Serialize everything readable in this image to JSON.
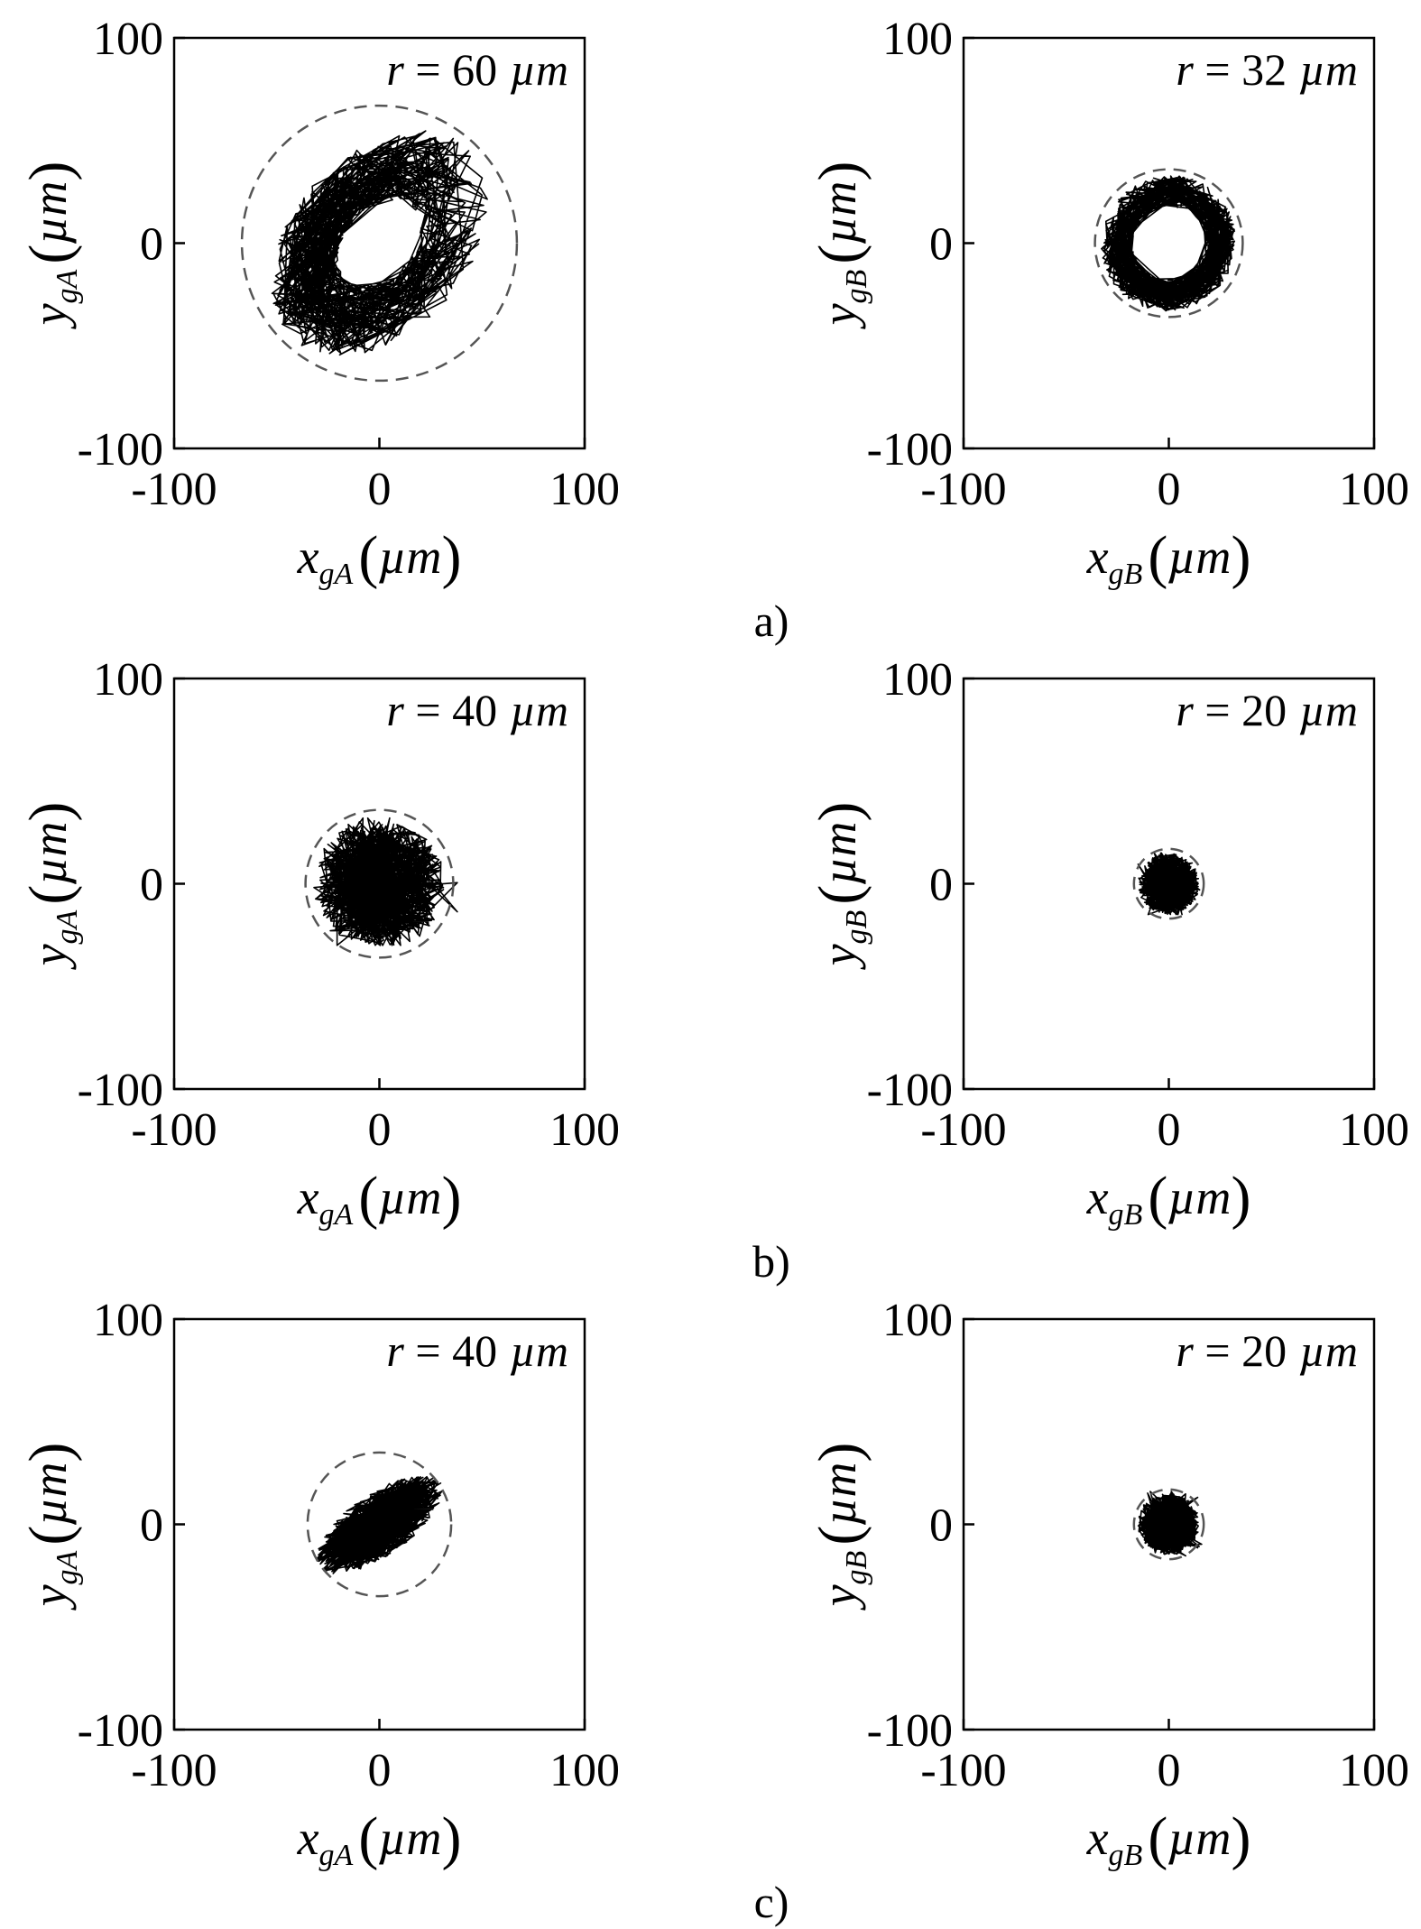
{
  "chart_data": [
    {
      "type": "line",
      "group": "a)",
      "panel": "left",
      "xlabel": {
        "var": "x",
        "sub": "gA",
        "unit": "µm"
      },
      "ylabel": {
        "var": "y",
        "sub": "gA",
        "unit": "µm"
      },
      "xlim": [
        -100,
        100
      ],
      "ylim": [
        -100,
        100
      ],
      "xticks": [
        "-100",
        "0",
        "100"
      ],
      "yticks": [
        "100",
        "0",
        "-100"
      ],
      "annotation": {
        "var": "r",
        "eq": " = ",
        "value": "60",
        "unit": "µm"
      },
      "boundary_circle": {
        "cx": 0,
        "cy": 0,
        "r": 67
      },
      "orbit": {
        "shape": "ring",
        "center": [
          0,
          0
        ],
        "r_inner": 14,
        "r_outer": 52,
        "skew": 0.55,
        "extent_x": [
          -58,
          58
        ],
        "extent_y": [
          -62,
          62
        ]
      }
    },
    {
      "type": "line",
      "group": "a)",
      "panel": "right",
      "xlabel": {
        "var": "x",
        "sub": "gB",
        "unit": "µm"
      },
      "ylabel": {
        "var": "y",
        "sub": "gB",
        "unit": "µm"
      },
      "xlim": [
        -100,
        100
      ],
      "ylim": [
        -100,
        100
      ],
      "xticks": [
        "-100",
        "0",
        "100"
      ],
      "yticks": [
        "100",
        "0",
        "-100"
      ],
      "annotation": {
        "var": "r",
        "eq": " = ",
        "value": "32",
        "unit": "µm"
      },
      "boundary_circle": {
        "cx": 0,
        "cy": 0,
        "r": 36
      },
      "orbit": {
        "shape": "ring",
        "center": [
          0,
          0
        ],
        "r_inner": 15,
        "r_outer": 33,
        "skew": 0.05,
        "extent_x": [
          -36,
          32
        ],
        "extent_y": [
          -38,
          34
        ]
      }
    },
    {
      "type": "line",
      "group": "b)",
      "panel": "left",
      "xlabel": {
        "var": "x",
        "sub": "gA",
        "unit": "µm"
      },
      "ylabel": {
        "var": "y",
        "sub": "gA",
        "unit": "µm"
      },
      "xlim": [
        -100,
        100
      ],
      "ylim": [
        -100,
        100
      ],
      "xticks": [
        "-100",
        "0",
        "100"
      ],
      "yticks": [
        "100",
        "0",
        "-100"
      ],
      "annotation": {
        "var": "r",
        "eq": " = ",
        "value": "40",
        "unit": "µm"
      },
      "boundary_circle": {
        "cx": 0,
        "cy": 0,
        "r": 36
      },
      "orbit": {
        "shape": "blob",
        "center": [
          0,
          0
        ],
        "r_inner": 0,
        "r_outer": 32,
        "skew": 0.05,
        "extent_x": [
          -33,
          38
        ],
        "extent_y": [
          -30,
          32
        ]
      }
    },
    {
      "type": "line",
      "group": "b)",
      "panel": "right",
      "xlabel": {
        "var": "x",
        "sub": "gB",
        "unit": "µm"
      },
      "ylabel": {
        "var": "y",
        "sub": "gB",
        "unit": "µm"
      },
      "xlim": [
        -100,
        100
      ],
      "ylim": [
        -100,
        100
      ],
      "xticks": [
        "-100",
        "0",
        "100"
      ],
      "yticks": [
        "100",
        "0",
        "-100"
      ],
      "annotation": {
        "var": "r",
        "eq": " = ",
        "value": "20",
        "unit": "µm"
      },
      "boundary_circle": {
        "cx": 0,
        "cy": 0,
        "r": 17
      },
      "orbit": {
        "shape": "blob",
        "center": [
          0,
          0
        ],
        "r_inner": 0,
        "r_outer": 15,
        "skew": 0,
        "extent_x": [
          -15,
          15
        ],
        "extent_y": [
          -15,
          15
        ]
      }
    },
    {
      "type": "line",
      "group": "c)",
      "panel": "left",
      "xlabel": {
        "var": "x",
        "sub": "gA",
        "unit": "µm"
      },
      "ylabel": {
        "var": "y",
        "sub": "gA",
        "unit": "µm"
      },
      "xlim": [
        -100,
        100
      ],
      "ylim": [
        -100,
        100
      ],
      "xticks": [
        "-100",
        "0",
        "100"
      ],
      "yticks": [
        "100",
        "0",
        "-100"
      ],
      "annotation": {
        "var": "r",
        "eq": " = ",
        "value": "40",
        "unit": "µm"
      },
      "boundary_circle": {
        "cx": 0,
        "cy": 0,
        "r": 35
      },
      "orbit": {
        "shape": "ellipse",
        "center": [
          0,
          0
        ],
        "r_inner": 0,
        "r_major": 36,
        "r_minor": 15,
        "angle_deg": 35,
        "extent_x": [
          -30,
          30
        ],
        "extent_y": [
          -32,
          32
        ]
      }
    },
    {
      "type": "line",
      "group": "c)",
      "panel": "right",
      "xlabel": {
        "var": "x",
        "sub": "gB",
        "unit": "µm"
      },
      "ylabel": {
        "var": "y",
        "sub": "gB",
        "unit": "µm"
      },
      "xlim": [
        -100,
        100
      ],
      "ylim": [
        -100,
        100
      ],
      "xticks": [
        "-100",
        "0",
        "100"
      ],
      "yticks": [
        "100",
        "0",
        "-100"
      ],
      "annotation": {
        "var": "r",
        "eq": " = ",
        "value": "20",
        "unit": "µm"
      },
      "boundary_circle": {
        "cx": 0,
        "cy": 0,
        "r": 17
      },
      "orbit": {
        "shape": "blob",
        "center": [
          0,
          0
        ],
        "r_inner": 0,
        "r_outer": 15,
        "skew": 0,
        "extent_x": [
          -16,
          16
        ],
        "extent_y": [
          -16,
          16
        ]
      }
    }
  ],
  "captions": [
    "a)",
    "b)",
    "c)"
  ]
}
